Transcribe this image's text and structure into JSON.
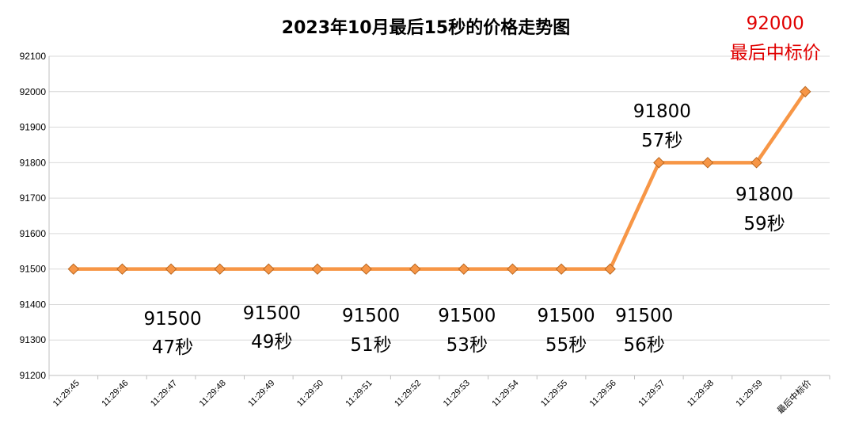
{
  "colors": {
    "line": "#F79646",
    "marker_fill": "#F79646",
    "marker_stroke": "#B8651E",
    "gridline": "#D9D9D9",
    "axis": "#BFBFBF",
    "highlight_text": "#E00000"
  },
  "chart_data": {
    "type": "line",
    "title": "2023年10月最后15秒的价格走势图",
    "categories": [
      "11:29:45",
      "11:29:46",
      "11:29:47",
      "11:29:48",
      "11:29:49",
      "11:29:50",
      "11:29:51",
      "11:29:52",
      "11:29:53",
      "11:29:54",
      "11:29:55",
      "11:29:56",
      "11:29:57",
      "11:29:58",
      "11:29:59",
      "最后中标价"
    ],
    "series": [
      {
        "values": [
          91500,
          91500,
          91500,
          91500,
          91500,
          91500,
          91500,
          91500,
          91500,
          91500,
          91500,
          91500,
          91800,
          91800,
          91800,
          92000
        ]
      }
    ],
    "ylim": [
      91200,
      92100
    ],
    "yticks": [
      91200,
      91300,
      91400,
      91500,
      91600,
      91700,
      91800,
      91900,
      92000,
      92100
    ],
    "grid": true,
    "legend": "none",
    "marker": "diamond",
    "annotations": [
      {
        "lines": [
          "91500",
          "47秒"
        ],
        "point_index": 2,
        "color": "black"
      },
      {
        "lines": [
          "91500",
          "49秒"
        ],
        "point_index": 4,
        "color": "black"
      },
      {
        "lines": [
          "91500",
          "51秒"
        ],
        "point_index": 6,
        "color": "black"
      },
      {
        "lines": [
          "91500",
          "53秒"
        ],
        "point_index": 8,
        "color": "black"
      },
      {
        "lines": [
          "91500",
          "55秒"
        ],
        "point_index": 10,
        "color": "black"
      },
      {
        "lines": [
          "91500",
          "56秒"
        ],
        "point_index": 11,
        "color": "black"
      },
      {
        "lines": [
          "91800",
          "57秒"
        ],
        "point_index": 12,
        "color": "black"
      },
      {
        "lines": [
          "91800",
          "59秒"
        ],
        "point_index": 14,
        "color": "black"
      },
      {
        "lines": [
          "92000",
          "最后中标价"
        ],
        "point_index": 15,
        "color": "red"
      }
    ]
  }
}
